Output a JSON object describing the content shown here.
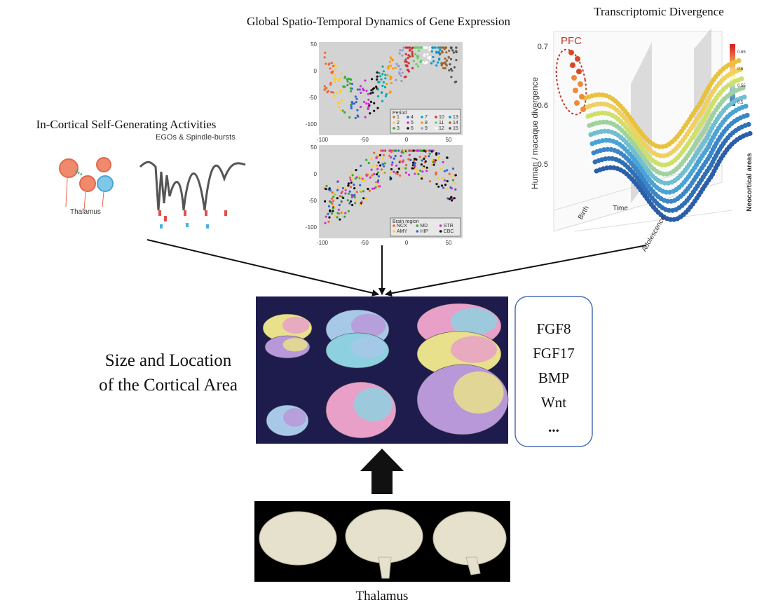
{
  "titles": {
    "gene_expression": "Global Spatio-Temporal Dynamics of Gene Expression",
    "divergence": "Transcriptomic Divergence",
    "activities": "In-Cortical Self-Generating Activities",
    "cortical_area": [
      "Size and Location",
      "of the Cortical Area"
    ],
    "thalamus": "Thalamus"
  },
  "activities_panel": {
    "wave_label": "EGOs & Spindle-bursts",
    "cell_label": "Thalamus"
  },
  "scatter_panels": [
    {
      "yticks": [
        50,
        0,
        -50,
        -100
      ],
      "xticks": [
        -100,
        -50,
        0,
        50
      ],
      "legend_title": "Period",
      "legend_items": [
        "1",
        "2",
        "3",
        "4",
        "5",
        "6",
        "7",
        "8",
        "9",
        "10",
        "11",
        "12",
        "13",
        "14",
        "15"
      ]
    },
    {
      "yticks": [
        50,
        0,
        -50,
        -100
      ],
      "xticks": [
        -100,
        -50,
        0,
        50
      ],
      "legend_title": "Brain region",
      "legend_items": [
        "NCX",
        "AMY",
        "MD",
        "HIP",
        "STR",
        "CBC"
      ]
    }
  ],
  "divergence_panel": {
    "label": "PFC",
    "y_axis_label": "Human / macaque divergence",
    "yticks": [
      0.7,
      0.6,
      0.5
    ],
    "colorbar_ticks": [
      0.65,
      0.6,
      0.55,
      0.5
    ],
    "x_labels": [
      "Birth",
      "Time",
      "Adolescence"
    ],
    "depth_label": "Neocortical areas"
  },
  "factors": [
    "FGF8",
    "FGF17",
    "BMP",
    "Wnt",
    "..."
  ]
}
